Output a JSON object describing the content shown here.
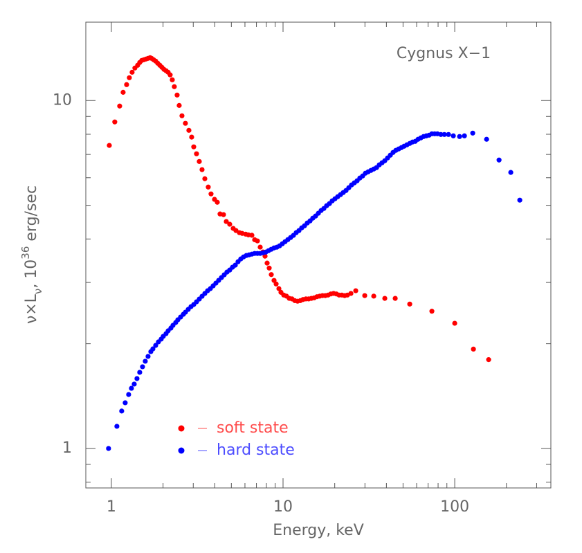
{
  "chart_data": {
    "type": "scatter",
    "annotation": "Cygnus X−1",
    "xlabel": "Energy, keV",
    "ylabel_parts": [
      {
        "text": "ν×L"
      },
      {
        "text": "ν",
        "shift": "sub"
      },
      {
        "text": ", 10"
      },
      {
        "text": "36",
        "shift": "super"
      },
      {
        "text": " erg/sec"
      }
    ],
    "xscale": "log",
    "yscale": "log",
    "xlim": [
      0.71,
      363
    ],
    "ylim": [
      0.77,
      16.8
    ],
    "xticks": [
      1,
      10,
      100
    ],
    "xminor": [
      2,
      3,
      4,
      5,
      6,
      7,
      8,
      9,
      20,
      30,
      40,
      50,
      60,
      70,
      80,
      90,
      200,
      300
    ],
    "yticks": [
      1,
      10
    ],
    "yminor": [
      0.8,
      0.9,
      2,
      3,
      4,
      5,
      6,
      7,
      8,
      9
    ],
    "legend": "lower left",
    "series": [
      {
        "name": "soft state",
        "color": "#ff0000",
        "x": [
          0.973,
          1.047,
          1.118,
          1.171,
          1.227,
          1.273,
          1.321,
          1.371,
          1.423,
          1.463,
          1.504,
          1.547,
          1.591,
          1.636,
          1.682,
          1.714,
          1.762,
          1.812,
          1.863,
          1.916,
          1.97,
          2.025,
          2.082,
          2.141,
          2.201,
          2.264,
          2.327,
          2.416,
          2.484,
          2.578,
          2.7,
          2.829,
          2.936,
          3.019,
          3.133,
          3.252,
          3.375,
          3.503,
          3.668,
          3.807,
          3.989,
          4.14,
          4.296,
          4.5,
          4.671,
          4.892,
          5.125,
          5.319,
          5.572,
          5.782,
          6.058,
          6.287,
          6.585,
          6.835,
          7.093,
          7.362,
          7.64,
          7.856,
          8.078,
          8.306,
          8.541,
          8.864,
          9.115,
          9.459,
          9.726,
          10.09,
          10.47,
          10.87,
          11.28,
          11.71,
          12.15,
          12.61,
          13.09,
          13.59,
          14.1,
          14.63,
          15.19,
          15.76,
          16.36,
          16.98,
          17.62,
          18.29,
          18.98,
          19.7,
          20.44,
          21.21,
          22.01,
          22.85,
          23.71,
          24.85,
          26.51,
          29.91,
          33.76,
          39.15,
          45.01,
          54.7,
          73.61,
          100.0,
          128.5,
          157.6
        ],
        "values": [
          7.43,
          8.68,
          9.64,
          10.56,
          11.11,
          11.63,
          12.06,
          12.4,
          12.63,
          12.86,
          13.04,
          13.1,
          13.16,
          13.22,
          13.28,
          13.22,
          13.1,
          12.98,
          12.8,
          12.63,
          12.46,
          12.29,
          12.18,
          12.06,
          11.85,
          11.47,
          10.96,
          10.37,
          9.68,
          9.04,
          8.6,
          8.21,
          7.85,
          7.36,
          7.03,
          6.68,
          6.33,
          5.96,
          5.64,
          5.39,
          5.2,
          5.1,
          4.72,
          4.7,
          4.49,
          4.41,
          4.29,
          4.23,
          4.17,
          4.15,
          4.13,
          4.11,
          4.1,
          3.98,
          3.95,
          3.79,
          3.67,
          3.57,
          3.41,
          3.3,
          3.16,
          3.04,
          2.97,
          2.88,
          2.81,
          2.76,
          2.74,
          2.7,
          2.69,
          2.66,
          2.65,
          2.66,
          2.68,
          2.69,
          2.69,
          2.7,
          2.71,
          2.73,
          2.74,
          2.75,
          2.75,
          2.76,
          2.78,
          2.79,
          2.78,
          2.76,
          2.76,
          2.75,
          2.76,
          2.79,
          2.84,
          2.75,
          2.74,
          2.7,
          2.7,
          2.6,
          2.48,
          2.29,
          1.93,
          1.8
        ]
      },
      {
        "name": "hard state",
        "color": "#0000ff",
        "x": [
          0.963,
          1.077,
          1.149,
          1.204,
          1.261,
          1.309,
          1.359,
          1.41,
          1.463,
          1.519,
          1.576,
          1.636,
          1.698,
          1.746,
          1.812,
          1.88,
          1.951,
          2.006,
          2.082,
          2.141,
          2.222,
          2.285,
          2.371,
          2.439,
          2.531,
          2.627,
          2.701,
          2.803,
          2.909,
          3.019,
          3.133,
          3.252,
          3.375,
          3.503,
          3.635,
          3.773,
          3.915,
          4.063,
          4.217,
          4.377,
          4.542,
          4.714,
          4.892,
          5.077,
          5.27,
          5.469,
          5.675,
          5.89,
          6.113,
          6.344,
          6.585,
          6.835,
          7.093,
          7.362,
          7.64,
          7.928,
          8.23,
          8.541,
          8.864,
          9.199,
          9.546,
          9.908,
          10.28,
          10.67,
          11.07,
          11.49,
          11.93,
          12.38,
          12.85,
          13.34,
          13.84,
          14.37,
          14.91,
          15.47,
          16.06,
          16.67,
          17.3,
          17.95,
          18.63,
          19.34,
          20.07,
          20.82,
          21.62,
          22.43,
          23.28,
          24.16,
          25.07,
          26.02,
          27.01,
          28.03,
          29.09,
          30.19,
          31.33,
          32.52,
          33.76,
          35.03,
          36.36,
          37.73,
          39.15,
          40.64,
          42.17,
          43.77,
          45.43,
          47.14,
          48.93,
          50.77,
          52.7,
          54.7,
          56.75,
          58.9,
          61.13,
          63.44,
          65.84,
          68.33,
          70.93,
          73.61,
          76.38,
          79.28,
          83.07,
          87.01,
          91.95,
          98.15,
          106.7,
          113.9,
          127.3,
          153.3,
          181.2,
          212.1,
          239.3
        ],
        "values": [
          1.0,
          1.158,
          1.281,
          1.353,
          1.429,
          1.489,
          1.531,
          1.588,
          1.655,
          1.717,
          1.781,
          1.839,
          1.898,
          1.933,
          1.978,
          2.024,
          2.062,
          2.1,
          2.138,
          2.178,
          2.218,
          2.259,
          2.301,
          2.343,
          2.386,
          2.43,
          2.464,
          2.51,
          2.556,
          2.592,
          2.639,
          2.688,
          2.738,
          2.789,
          2.84,
          2.88,
          2.933,
          2.987,
          3.042,
          3.098,
          3.155,
          3.213,
          3.257,
          3.318,
          3.364,
          3.441,
          3.505,
          3.553,
          3.586,
          3.602,
          3.618,
          3.635,
          3.635,
          3.635,
          3.651,
          3.667,
          3.702,
          3.736,
          3.77,
          3.788,
          3.823,
          3.876,
          3.929,
          3.984,
          4.039,
          4.096,
          4.171,
          4.229,
          4.306,
          4.366,
          4.447,
          4.509,
          4.592,
          4.656,
          4.743,
          4.83,
          4.896,
          4.986,
          5.055,
          5.148,
          5.22,
          5.292,
          5.365,
          5.439,
          5.514,
          5.616,
          5.72,
          5.799,
          5.879,
          5.988,
          6.07,
          6.182,
          6.239,
          6.297,
          6.355,
          6.414,
          6.533,
          6.623,
          6.714,
          6.839,
          6.965,
          7.094,
          7.193,
          7.258,
          7.324,
          7.392,
          7.46,
          7.528,
          7.597,
          7.632,
          7.738,
          7.808,
          7.88,
          7.916,
          7.952,
          8.025,
          8.025,
          8.025,
          7.988,
          7.988,
          7.988,
          7.916,
          7.88,
          7.916,
          8.062,
          7.738,
          6.745,
          6.214,
          5.172
        ]
      }
    ]
  }
}
